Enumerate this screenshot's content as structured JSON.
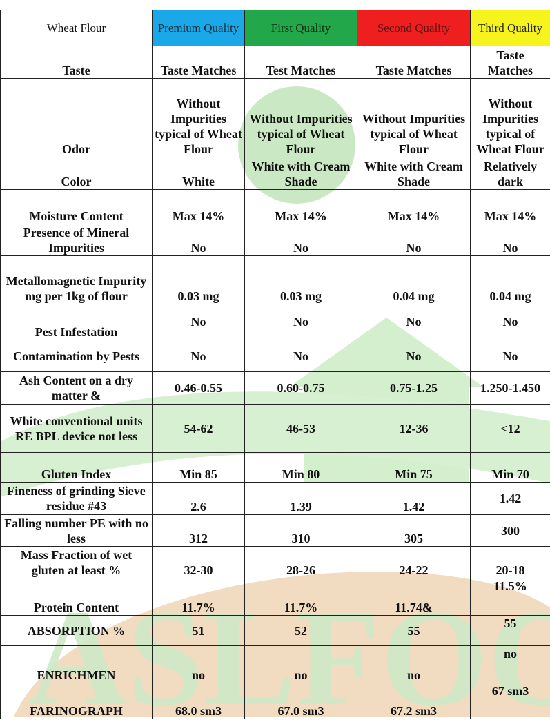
{
  "header": {
    "product": "Wheat Flour",
    "grades": [
      {
        "label": "Premium Quality",
        "color": "#1aa8e8"
      },
      {
        "label": "First Quality",
        "color": "#22a84a"
      },
      {
        "label": "Second Quality",
        "color": "#ef1f1f"
      },
      {
        "label": "Third Quality",
        "color": "#f7f31c"
      }
    ]
  },
  "rows": [
    {
      "label": "Taste",
      "values": [
        "Taste Matches",
        "Test Matches",
        "Taste Matches",
        "Taste Matches"
      ]
    },
    {
      "label": "Odor",
      "values": [
        "Without Impurities typical of Wheat Flour",
        "Without Impurities typical of Wheat Flour",
        "Without Impurities typical of Wheat Flour",
        "Without Impurities typical of Wheat Flour"
      ]
    },
    {
      "label": "Color",
      "values": [
        "White",
        "White with Cream Shade",
        "White with Cream Shade",
        "Relatively dark"
      ]
    },
    {
      "label": "Moisture Content",
      "values": [
        "Max 14%",
        "Max 14%",
        "Max 14%",
        "Max 14%"
      ]
    },
    {
      "label": "Presence of Mineral Impurities",
      "values": [
        "No",
        "No",
        "No",
        "No"
      ]
    },
    {
      "label": "Metallomagnetic Impurity mg per 1kg of flour",
      "values": [
        "0.03 mg",
        "0.03 mg",
        "0.04 mg",
        "0.04 mg"
      ]
    },
    {
      "label": "Pest Infestation",
      "values": [
        "No",
        "No",
        "No",
        "No"
      ]
    },
    {
      "label": "Contamination by Pests",
      "values": [
        "No",
        "No",
        "No",
        "No"
      ]
    },
    {
      "label": "Ash Content on a dry matter &",
      "values": [
        "0.46-0.55",
        "0.60-0.75",
        "0.75-1.25",
        "1.250-1.450"
      ]
    },
    {
      "label": "White conventional units RE BPL device not less",
      "values": [
        "54-62",
        "46-53",
        "12-36",
        "<12"
      ]
    },
    {
      "label": "Gluten Index",
      "values": [
        "Min 85",
        "Min 80",
        "Min 75",
        "Min 70"
      ]
    },
    {
      "label": "Fineness of grinding Sieve residue #43",
      "values": [
        "2.6",
        "1.39",
        "1.42",
        "1.42"
      ]
    },
    {
      "label": "Falling number PE with no less",
      "values": [
        "312",
        "310",
        "305",
        "300"
      ]
    },
    {
      "label": "Mass Fraction of wet gluten at least %",
      "values": [
        "32-30",
        "28-26",
        "24-22",
        "20-18"
      ]
    },
    {
      "label": "Protein Content",
      "values": [
        "11.7%",
        "11.7%",
        "11.74&",
        "11.5%"
      ]
    },
    {
      "label": "ABSORPTION %",
      "values": [
        "51",
        "52",
        "55",
        "55"
      ]
    },
    {
      "label": "ENRICHMEN",
      "values": [
        "no",
        "no",
        "no",
        "no"
      ]
    },
    {
      "label": "FARINOGRAPH",
      "values": [
        "68.0 sm3",
        "67.0 sm3",
        "67.2 sm3",
        "67 sm3"
      ]
    }
  ],
  "watermark": {
    "text": "ASLFOOD",
    "color": "#c9e8c2",
    "accent": "#e9c9a0"
  }
}
